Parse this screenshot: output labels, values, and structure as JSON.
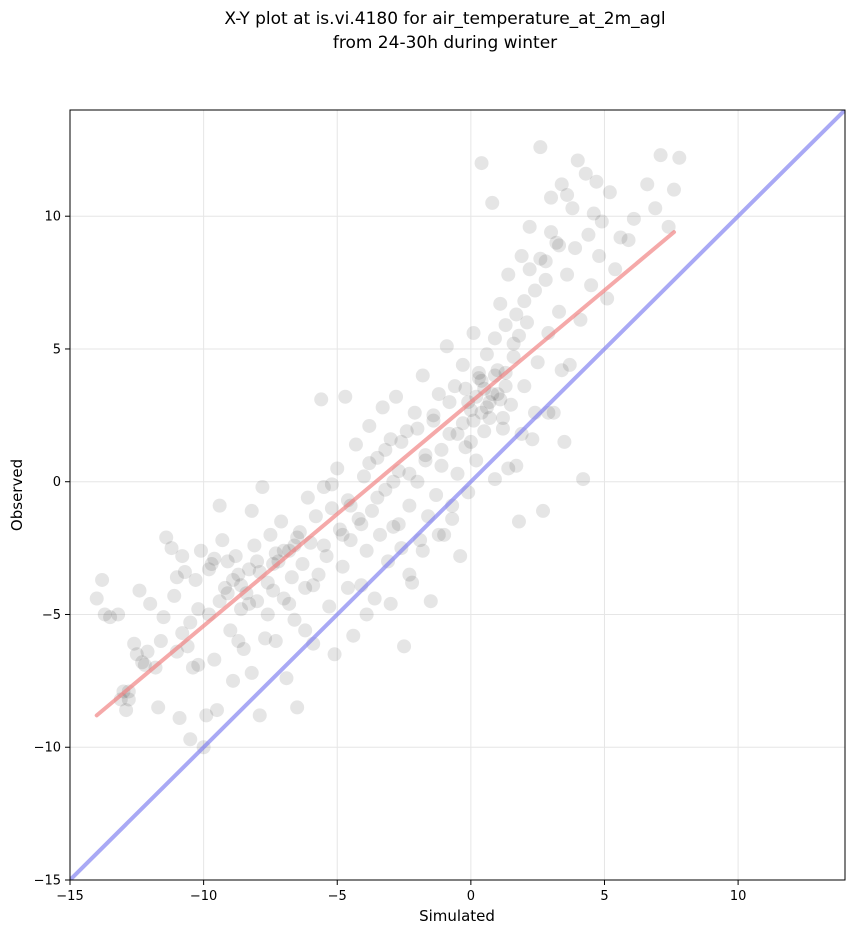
{
  "chart_data": {
    "type": "scatter",
    "title": "X-Y plot at is.vi.4180 for air_temperature_at_2m_agl",
    "subtitle": "from 24-30h during winter",
    "xlabel": "Simulated",
    "ylabel": "Observed",
    "xlim": [
      -15,
      14
    ],
    "ylim": [
      -15,
      14
    ],
    "xticks": [
      -15,
      -10,
      -5,
      0,
      5,
      10
    ],
    "yticks": [
      -15,
      -10,
      -5,
      0,
      5,
      10
    ],
    "xtick_labels": [
      "−15",
      "−10",
      "−5",
      "0",
      "5",
      "10"
    ],
    "ytick_labels": [
      "−15",
      "−10",
      "−5",
      "0",
      "5",
      "10"
    ],
    "grid": true,
    "colors": {
      "points": "#000000",
      "regression": "#f07b7b",
      "identity": "#7b7bf0",
      "grid": "#e6e6e6"
    },
    "regression_line": {
      "x": [
        -14,
        7.6
      ],
      "y": [
        -8.8,
        9.4
      ]
    },
    "identity_line": {
      "x": [
        -15,
        14
      ],
      "y": [
        -15,
        14
      ]
    },
    "points": [
      [
        -14.0,
        -4.4
      ],
      [
        -13.8,
        -3.7
      ],
      [
        -13.7,
        -5.0
      ],
      [
        -13.5,
        -5.1
      ],
      [
        -13.2,
        -5.0
      ],
      [
        -13.0,
        -7.9
      ],
      [
        -12.9,
        -8.6
      ],
      [
        -12.8,
        -8.2
      ],
      [
        -12.6,
        -6.1
      ],
      [
        -12.5,
        -6.5
      ],
      [
        -12.4,
        -4.1
      ],
      [
        -12.3,
        -6.8
      ],
      [
        -12.1,
        -6.4
      ],
      [
        -12.0,
        -4.6
      ],
      [
        -11.8,
        -7.0
      ],
      [
        -11.7,
        -8.5
      ],
      [
        -11.6,
        -6.0
      ],
      [
        -11.4,
        -2.1
      ],
      [
        -11.2,
        -2.5
      ],
      [
        -11.1,
        -4.3
      ],
      [
        -11.0,
        -3.6
      ],
      [
        -10.9,
        -8.9
      ],
      [
        -10.8,
        -5.7
      ],
      [
        -10.7,
        -3.4
      ],
      [
        -10.6,
        -6.2
      ],
      [
        -10.5,
        -9.7
      ],
      [
        -10.4,
        -7.0
      ],
      [
        -10.3,
        -3.7
      ],
      [
        -10.2,
        -4.8
      ],
      [
        -10.1,
        -2.6
      ],
      [
        -10.0,
        -10.0
      ],
      [
        -9.9,
        -8.8
      ],
      [
        -9.8,
        -5.0
      ],
      [
        -9.7,
        -3.1
      ],
      [
        -9.6,
        -6.7
      ],
      [
        -9.5,
        -8.6
      ],
      [
        -9.4,
        -0.9
      ],
      [
        -9.3,
        -2.2
      ],
      [
        -9.2,
        -4.0
      ],
      [
        -9.1,
        -3.0
      ],
      [
        -9.0,
        -5.6
      ],
      [
        -8.9,
        -7.5
      ],
      [
        -8.8,
        -2.8
      ],
      [
        -8.7,
        -3.5
      ],
      [
        -8.6,
        -4.8
      ],
      [
        -8.5,
        -6.3
      ],
      [
        -8.4,
        -4.2
      ],
      [
        -8.3,
        -3.3
      ],
      [
        -8.2,
        -1.1
      ],
      [
        -8.1,
        -2.4
      ],
      [
        -8.0,
        -4.5
      ],
      [
        -7.9,
        -8.8
      ],
      [
        -7.8,
        -0.2
      ],
      [
        -7.7,
        -5.9
      ],
      [
        -7.6,
        -3.8
      ],
      [
        -7.5,
        -2.0
      ],
      [
        -7.4,
        -4.1
      ],
      [
        -7.3,
        -6.0
      ],
      [
        -7.2,
        -3.0
      ],
      [
        -7.1,
        -1.5
      ],
      [
        -7.0,
        -4.4
      ],
      [
        -6.9,
        -7.4
      ],
      [
        -6.8,
        -2.6
      ],
      [
        -6.7,
        -3.6
      ],
      [
        -6.6,
        -5.2
      ],
      [
        -6.5,
        -8.5
      ],
      [
        -6.4,
        -1.9
      ],
      [
        -6.3,
        -3.1
      ],
      [
        -6.2,
        -4.0
      ],
      [
        -6.1,
        -0.6
      ],
      [
        -6.0,
        -2.3
      ],
      [
        -5.9,
        -6.1
      ],
      [
        -5.8,
        -1.3
      ],
      [
        -5.7,
        -3.5
      ],
      [
        -5.6,
        3.1
      ],
      [
        -5.5,
        -0.2
      ],
      [
        -5.4,
        -2.8
      ],
      [
        -5.3,
        -4.7
      ],
      [
        -5.2,
        -1.0
      ],
      [
        -5.1,
        -6.5
      ],
      [
        -5.0,
        0.5
      ],
      [
        -4.9,
        -1.8
      ],
      [
        -4.8,
        -3.2
      ],
      [
        -4.7,
        3.2
      ],
      [
        -4.6,
        -0.7
      ],
      [
        -4.5,
        -2.2
      ],
      [
        -4.4,
        -5.8
      ],
      [
        -4.3,
        1.4
      ],
      [
        -4.2,
        -1.4
      ],
      [
        -4.1,
        -3.9
      ],
      [
        -4.0,
        0.2
      ],
      [
        -3.9,
        -2.6
      ],
      [
        -3.8,
        2.1
      ],
      [
        -3.7,
        -1.1
      ],
      [
        -3.6,
        -4.4
      ],
      [
        -3.5,
        0.9
      ],
      [
        -3.4,
        -2.0
      ],
      [
        -3.3,
        2.8
      ],
      [
        -3.2,
        -0.3
      ],
      [
        -3.1,
        -3.0
      ],
      [
        -3.0,
        1.6
      ],
      [
        -2.9,
        -1.7
      ],
      [
        -2.8,
        3.2
      ],
      [
        -2.7,
        0.4
      ],
      [
        -2.6,
        -2.5
      ],
      [
        -2.5,
        -6.2
      ],
      [
        -2.4,
        1.9
      ],
      [
        -2.3,
        -0.9
      ],
      [
        -2.2,
        -3.8
      ],
      [
        -2.1,
        2.6
      ],
      [
        -2.0,
        0.0
      ],
      [
        -1.9,
        -2.2
      ],
      [
        -1.8,
        4.0
      ],
      [
        -1.7,
        1.0
      ],
      [
        -1.6,
        -1.3
      ],
      [
        -1.5,
        -4.5
      ],
      [
        -1.4,
        2.3
      ],
      [
        -1.3,
        -0.5
      ],
      [
        -1.2,
        3.3
      ],
      [
        -1.1,
        0.6
      ],
      [
        -1.0,
        -2.0
      ],
      [
        -0.9,
        5.1
      ],
      [
        -0.8,
        1.8
      ],
      [
        -0.7,
        -0.9
      ],
      [
        -0.6,
        3.6
      ],
      [
        -0.5,
        0.3
      ],
      [
        -0.4,
        -2.8
      ],
      [
        -0.3,
        4.4
      ],
      [
        -0.2,
        1.3
      ],
      [
        -0.1,
        -0.4
      ],
      [
        0.0,
        2.7
      ],
      [
        0.1,
        5.6
      ],
      [
        0.2,
        0.8
      ],
      [
        0.3,
        3.9
      ],
      [
        0.4,
        12.0
      ],
      [
        0.5,
        1.9
      ],
      [
        0.6,
        4.8
      ],
      [
        0.7,
        2.4
      ],
      [
        0.8,
        10.5
      ],
      [
        0.9,
        0.1
      ],
      [
        1.0,
        3.3
      ],
      [
        1.1,
        6.7
      ],
      [
        1.2,
        2.0
      ],
      [
        1.3,
        4.1
      ],
      [
        1.4,
        7.8
      ],
      [
        1.5,
        2.9
      ],
      [
        1.6,
        5.2
      ],
      [
        1.7,
        0.6
      ],
      [
        1.8,
        -1.5
      ],
      [
        1.9,
        8.5
      ],
      [
        2.0,
        3.6
      ],
      [
        2.1,
        6.0
      ],
      [
        2.2,
        9.6
      ],
      [
        2.3,
        1.6
      ],
      [
        2.4,
        7.2
      ],
      [
        2.5,
        4.5
      ],
      [
        2.6,
        12.6
      ],
      [
        2.7,
        -1.1
      ],
      [
        2.8,
        8.3
      ],
      [
        2.9,
        5.6
      ],
      [
        3.0,
        10.7
      ],
      [
        3.1,
        2.6
      ],
      [
        3.2,
        9.0
      ],
      [
        3.3,
        6.4
      ],
      [
        3.4,
        11.2
      ],
      [
        3.5,
        1.5
      ],
      [
        3.6,
        7.8
      ],
      [
        3.7,
        4.4
      ],
      [
        3.8,
        10.3
      ],
      [
        3.9,
        8.8
      ],
      [
        4.0,
        12.1
      ],
      [
        4.1,
        6.1
      ],
      [
        4.2,
        0.1
      ],
      [
        4.3,
        11.6
      ],
      [
        4.4,
        9.3
      ],
      [
        4.5,
        7.4
      ],
      [
        4.6,
        10.1
      ],
      [
        4.7,
        11.3
      ],
      [
        4.8,
        8.5
      ],
      [
        4.9,
        9.8
      ],
      [
        5.1,
        6.9
      ],
      [
        5.2,
        10.9
      ],
      [
        5.4,
        8.0
      ],
      [
        5.6,
        9.2
      ],
      [
        5.9,
        9.1
      ],
      [
        6.1,
        9.9
      ],
      [
        6.6,
        11.2
      ],
      [
        6.9,
        10.3
      ],
      [
        7.1,
        12.3
      ],
      [
        7.4,
        9.6
      ],
      [
        7.6,
        11.0
      ],
      [
        7.8,
        12.2
      ],
      [
        -12.2,
        -6.9
      ],
      [
        -11.5,
        -5.1
      ],
      [
        -10.2,
        -6.9
      ],
      [
        -9.6,
        -2.9
      ],
      [
        -8.7,
        -6.0
      ],
      [
        -8.2,
        -7.2
      ],
      [
        -7.6,
        -5.0
      ],
      [
        -7.3,
        -2.7
      ],
      [
        -6.8,
        -4.6
      ],
      [
        -6.5,
        -2.1
      ],
      [
        -6.2,
        -5.6
      ],
      [
        -5.9,
        -3.9
      ],
      [
        -5.5,
        -2.4
      ],
      [
        -5.2,
        -0.1
      ],
      [
        -4.8,
        -2.0
      ],
      [
        -4.5,
        -0.9
      ],
      [
        -4.1,
        -1.6
      ],
      [
        -3.8,
        0.7
      ],
      [
        -3.5,
        -0.6
      ],
      [
        -3.2,
        1.2
      ],
      [
        -2.9,
        0.0
      ],
      [
        -2.6,
        1.5
      ],
      [
        -2.3,
        0.3
      ],
      [
        -2.0,
        2.0
      ],
      [
        -1.7,
        0.8
      ],
      [
        -1.4,
        2.5
      ],
      [
        -1.1,
        1.2
      ],
      [
        -0.8,
        3.0
      ],
      [
        -0.5,
        1.8
      ],
      [
        -0.2,
        3.5
      ],
      [
        0.1,
        2.3
      ],
      [
        0.4,
        3.8
      ],
      [
        0.7,
        3.0
      ],
      [
        1.0,
        4.2
      ],
      [
        1.3,
        3.6
      ],
      [
        1.6,
        4.7
      ],
      [
        -0.3,
        2.2
      ],
      [
        0.2,
        3.2
      ],
      [
        0.5,
        3.5
      ],
      [
        0.8,
        3.3
      ],
      [
        0.6,
        2.8
      ],
      [
        0.9,
        4.0
      ],
      [
        1.1,
        3.1
      ],
      [
        0.3,
        4.1
      ],
      [
        -0.1,
        3.0
      ],
      [
        0.0,
        1.5
      ],
      [
        0.4,
        2.6
      ],
      [
        1.2,
        2.4
      ],
      [
        -9.1,
        -4.2
      ],
      [
        -8.6,
        -3.9
      ],
      [
        -8.3,
        -4.6
      ],
      [
        -7.9,
        -3.4
      ],
      [
        -7.4,
        -3.1
      ],
      [
        -7.0,
        -2.6
      ],
      [
        -6.6,
        -2.4
      ],
      [
        -9.4,
        -4.5
      ],
      [
        -10.5,
        -5.3
      ],
      [
        -11.0,
        -6.4
      ],
      [
        -12.8,
        -7.9
      ],
      [
        -13.1,
        -8.2
      ],
      [
        -10.8,
        -2.8
      ],
      [
        -9.8,
        -3.3
      ],
      [
        -8.9,
        -3.7
      ],
      [
        -8.0,
        -3.0
      ],
      [
        -3.0,
        -4.6
      ],
      [
        -2.3,
        -3.5
      ],
      [
        -1.8,
        -2.6
      ],
      [
        -1.2,
        -2.0
      ],
      [
        -0.7,
        -1.4
      ],
      [
        -3.9,
        -5.0
      ],
      [
        -4.6,
        -4.0
      ],
      [
        -2.7,
        -1.6
      ],
      [
        2.4,
        2.6
      ],
      [
        2.9,
        2.6
      ],
      [
        3.4,
        4.2
      ],
      [
        1.9,
        1.8
      ],
      [
        1.4,
        0.5
      ],
      [
        2.2,
        8.0
      ],
      [
        2.6,
        8.4
      ],
      [
        3.0,
        9.4
      ],
      [
        3.6,
        10.8
      ],
      [
        3.3,
        8.9
      ],
      [
        2.8,
        7.6
      ],
      [
        2.0,
        6.8
      ],
      [
        1.7,
        6.3
      ],
      [
        1.3,
        5.9
      ],
      [
        0.9,
        5.4
      ],
      [
        1.8,
        5.5
      ]
    ]
  }
}
